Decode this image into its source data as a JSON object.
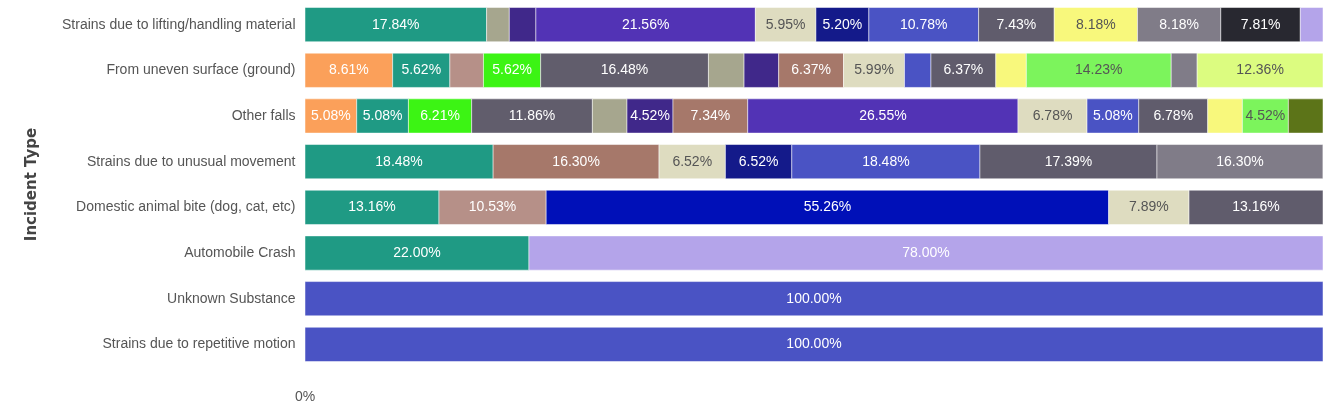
{
  "chart_data": {
    "type": "bar",
    "orientation": "horizontal",
    "stacked": true,
    "ylabel": "Incident Type",
    "categories": [
      "Strains due to lifting/handling material",
      "From uneven surface (ground)",
      "Other falls",
      "Strains due to unusual movement",
      "Domestic animal bite (dog, cat, etc)",
      "Automobile Crash",
      "Unknown Substance",
      "Strains due to repetitive motion"
    ],
    "xlim": [
      0,
      100
    ],
    "annotations": [
      "0%"
    ],
    "series": [
      {
        "color": "#fba05a",
        "values": [
          null,
          8.61,
          5.08,
          null,
          null,
          null,
          null,
          null
        ],
        "value_labels": [
          null,
          "8.61%",
          "5.08%",
          null,
          null,
          null,
          null,
          null
        ]
      },
      {
        "color": "#1f9a84",
        "values": [
          17.84,
          5.62,
          5.08,
          18.48,
          13.16,
          22.0,
          null,
          null
        ],
        "value_labels": [
          "17.84%",
          "5.62%",
          "5.08%",
          "18.48%",
          "13.16%",
          "22.00%",
          null,
          null
        ]
      },
      {
        "color": "#b69088",
        "values": [
          null,
          3.3,
          null,
          null,
          10.53,
          null,
          null,
          null
        ],
        "value_labels": [
          null,
          null,
          null,
          null,
          "10.53%",
          null,
          null,
          null
        ]
      },
      {
        "color": "#3cf414",
        "values": [
          null,
          5.62,
          6.21,
          null,
          null,
          null,
          null,
          null
        ],
        "value_labels": [
          null,
          "5.62%",
          "6.21%",
          null,
          null,
          null,
          null,
          null
        ]
      },
      {
        "color": "#615d6c",
        "values": [
          null,
          16.48,
          11.86,
          null,
          null,
          null,
          null,
          null
        ],
        "value_labels": [
          null,
          "16.48%",
          "11.86%",
          null,
          null,
          null,
          null,
          null
        ]
      },
      {
        "color": "#a6a68e",
        "values": [
          2.23,
          3.5,
          3.4,
          null,
          null,
          null,
          null,
          null
        ],
        "value_labels": [
          null,
          null,
          null,
          null,
          null,
          null,
          null,
          null
        ]
      },
      {
        "color": "#40288a",
        "values": [
          2.61,
          3.4,
          4.52,
          null,
          null,
          null,
          null,
          null
        ],
        "value_labels": [
          null,
          null,
          "4.52%",
          null,
          null,
          null,
          null,
          null
        ]
      },
      {
        "color": "#a6786a",
        "values": [
          null,
          6.37,
          7.34,
          16.3,
          null,
          null,
          null,
          null
        ],
        "value_labels": [
          null,
          "6.37%",
          "7.34%",
          "16.30%",
          null,
          null,
          null,
          null
        ]
      },
      {
        "color": "#5233b5",
        "values": [
          21.56,
          null,
          26.55,
          null,
          null,
          null,
          null,
          null
        ],
        "value_labels": [
          "21.56%",
          null,
          "26.55%",
          null,
          null,
          null,
          null,
          null
        ]
      },
      {
        "color": "#0010b8",
        "values": [
          null,
          null,
          null,
          null,
          55.26,
          null,
          null,
          null
        ],
        "value_labels": [
          null,
          null,
          null,
          null,
          "55.26%",
          null,
          null,
          null
        ]
      },
      {
        "color": "#dedcc0",
        "values": [
          5.95,
          5.99,
          6.78,
          6.52,
          7.89,
          null,
          null,
          null
        ],
        "value_labels": [
          "5.95%",
          "5.99%",
          "6.78%",
          "6.52%",
          "7.89%",
          null,
          null,
          null
        ]
      },
      {
        "color": "#141a8a",
        "values": [
          5.2,
          null,
          null,
          6.52,
          null,
          null,
          null,
          null
        ],
        "value_labels": [
          "5.20%",
          null,
          null,
          "6.52%",
          null,
          null,
          null,
          null
        ]
      },
      {
        "color": "#4a53c4",
        "values": [
          10.78,
          2.6,
          5.08,
          18.48,
          null,
          null,
          100,
          100
        ],
        "value_labels": [
          "10.78%",
          null,
          "5.08%",
          "18.48%",
          null,
          null,
          "100.00%",
          "100.00%"
        ]
      },
      {
        "color": "#605c6c",
        "values": [
          7.43,
          6.37,
          6.78,
          17.39,
          13.16,
          null,
          null,
          null
        ],
        "value_labels": [
          "7.43%",
          "6.37%",
          "6.78%",
          "17.39%",
          "13.16%",
          null,
          null,
          null
        ]
      },
      {
        "color": "#f8f87c",
        "values": [
          8.18,
          3.0,
          3.4,
          null,
          null,
          null,
          null,
          null
        ],
        "value_labels": [
          "8.18%",
          null,
          null,
          null,
          null,
          null,
          null,
          null
        ]
      },
      {
        "color": "#7cf45c",
        "values": [
          null,
          14.23,
          4.52,
          null,
          null,
          null,
          null,
          null
        ],
        "value_labels": [
          null,
          "14.23%",
          "4.52%",
          null,
          null,
          null,
          null,
          null
        ]
      },
      {
        "color": "#807c88",
        "values": [
          8.18,
          2.55,
          null,
          16.3,
          null,
          null,
          null,
          null
        ],
        "value_labels": [
          "8.18%",
          null,
          null,
          "16.30%",
          null,
          null,
          null,
          null
        ]
      },
      {
        "color": "#282830",
        "values": [
          7.81,
          null,
          null,
          null,
          null,
          null,
          null,
          null
        ],
        "value_labels": [
          "7.81%",
          null,
          null,
          null,
          null,
          null,
          null,
          null
        ]
      },
      {
        "color": "#dcfc80",
        "values": [
          null,
          12.36,
          null,
          null,
          null,
          null,
          null,
          null
        ],
        "value_labels": [
          null,
          "12.36%",
          null,
          null,
          null,
          null,
          null,
          null
        ]
      },
      {
        "color": "#5c7418",
        "values": [
          null,
          null,
          3.4,
          null,
          null,
          null,
          null,
          null
        ],
        "value_labels": [
          null,
          null,
          null,
          null,
          null,
          null,
          null,
          null
        ]
      },
      {
        "color": "#b4a4ea",
        "values": [
          2.23,
          null,
          null,
          null,
          null,
          78.0,
          null,
          null
        ],
        "value_labels": [
          null,
          null,
          null,
          null,
          null,
          "78.00%",
          null,
          null
        ]
      }
    ]
  }
}
